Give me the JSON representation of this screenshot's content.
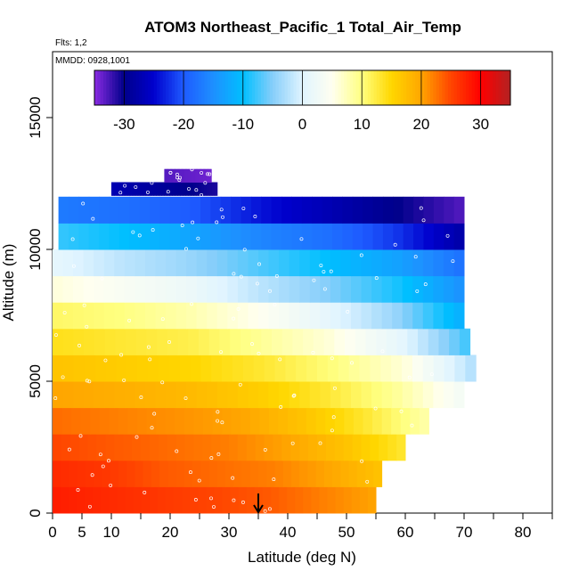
{
  "chart_data": {
    "type": "heatmap",
    "title": "ATOM3 Northeast_Pacific_1 Total_Air_Temp",
    "flights_label": "Flts: 1,2",
    "date_label": "MMDD: 0928,1001",
    "xlabel": "Latitude (deg N)",
    "ylabel": "Altitude (m)",
    "xlim": [
      0,
      85
    ],
    "ylim": [
      0,
      17500
    ],
    "x_ticks": [
      0,
      5,
      10,
      20,
      30,
      40,
      50,
      60,
      70,
      80
    ],
    "y_ticks": [
      0,
      5000,
      10000,
      15000
    ],
    "colorbar": {
      "range": [
        -35,
        35
      ],
      "ticks": [
        -30,
        -20,
        -10,
        0,
        10,
        20,
        30
      ],
      "colors": [
        "#8a2be2",
        "#00008b",
        "#0000cd",
        "#1e5aff",
        "#1e90ff",
        "#00bfff",
        "#87cefa",
        "#e0f4ff",
        "#fffff0",
        "#ffff80",
        "#ffd700",
        "#ffa500",
        "#ff4500",
        "#ff0000",
        "#b22222"
      ]
    },
    "marker": {
      "x": 35,
      "label": "arrow"
    },
    "altitude_bins_m": [
      0,
      1000,
      2000,
      3000,
      4000,
      5000,
      6000,
      7000,
      8000,
      9000,
      10000,
      11000,
      12000,
      13000
    ],
    "series": [
      {
        "alt": 500,
        "x_range": [
          0,
          55
        ],
        "temps": [
          28,
          27,
          26,
          25,
          24,
          22,
          20
        ]
      },
      {
        "alt": 1500,
        "x_range": [
          0,
          56
        ],
        "temps": [
          27,
          26,
          24,
          23,
          22,
          20,
          17
        ]
      },
      {
        "alt": 2500,
        "x_range": [
          0,
          60
        ],
        "temps": [
          25,
          24,
          23,
          22,
          20,
          17,
          13
        ]
      },
      {
        "alt": 3500,
        "x_range": [
          0,
          64
        ],
        "temps": [
          23,
          22,
          21,
          20,
          17,
          13,
          8
        ]
      },
      {
        "alt": 4500,
        "x_range": [
          0,
          70
        ],
        "temps": [
          20,
          19,
          18,
          16,
          13,
          9,
          3
        ]
      },
      {
        "alt": 5500,
        "x_range": [
          0,
          72
        ],
        "temps": [
          17,
          16,
          15,
          13,
          10,
          6,
          -3
        ]
      },
      {
        "alt": 6500,
        "x_range": [
          0,
          71
        ],
        "temps": [
          14,
          13,
          12,
          9,
          6,
          1,
          -8
        ]
      },
      {
        "alt": 7500,
        "x_range": [
          0,
          70
        ],
        "temps": [
          11,
          10,
          8,
          5,
          1,
          -4,
          -12
        ]
      },
      {
        "alt": 8500,
        "x_range": [
          0,
          70
        ],
        "temps": [
          6,
          4,
          2,
          -2,
          -5,
          -9,
          -15
        ]
      },
      {
        "alt": 9500,
        "x_range": [
          0,
          70
        ],
        "temps": [
          1,
          -2,
          -4,
          -7,
          -10,
          -13,
          -18
        ]
      },
      {
        "alt": 10500,
        "x_range": [
          1,
          70
        ],
        "temps": [
          -8,
          -10,
          -13,
          -16,
          -18,
          -22,
          -28
        ]
      },
      {
        "alt": 11500,
        "x_range": [
          1,
          70
        ],
        "temps": [
          -17,
          -18,
          -20,
          -24,
          -27,
          -30,
          -33
        ]
      },
      {
        "alt": 12300,
        "x_range": [
          10,
          28
        ],
        "temps": [
          -27,
          -29,
          -31
        ]
      },
      {
        "alt": 12800,
        "x_range": [
          19,
          27
        ],
        "temps": [
          -33,
          -34
        ]
      }
    ]
  }
}
